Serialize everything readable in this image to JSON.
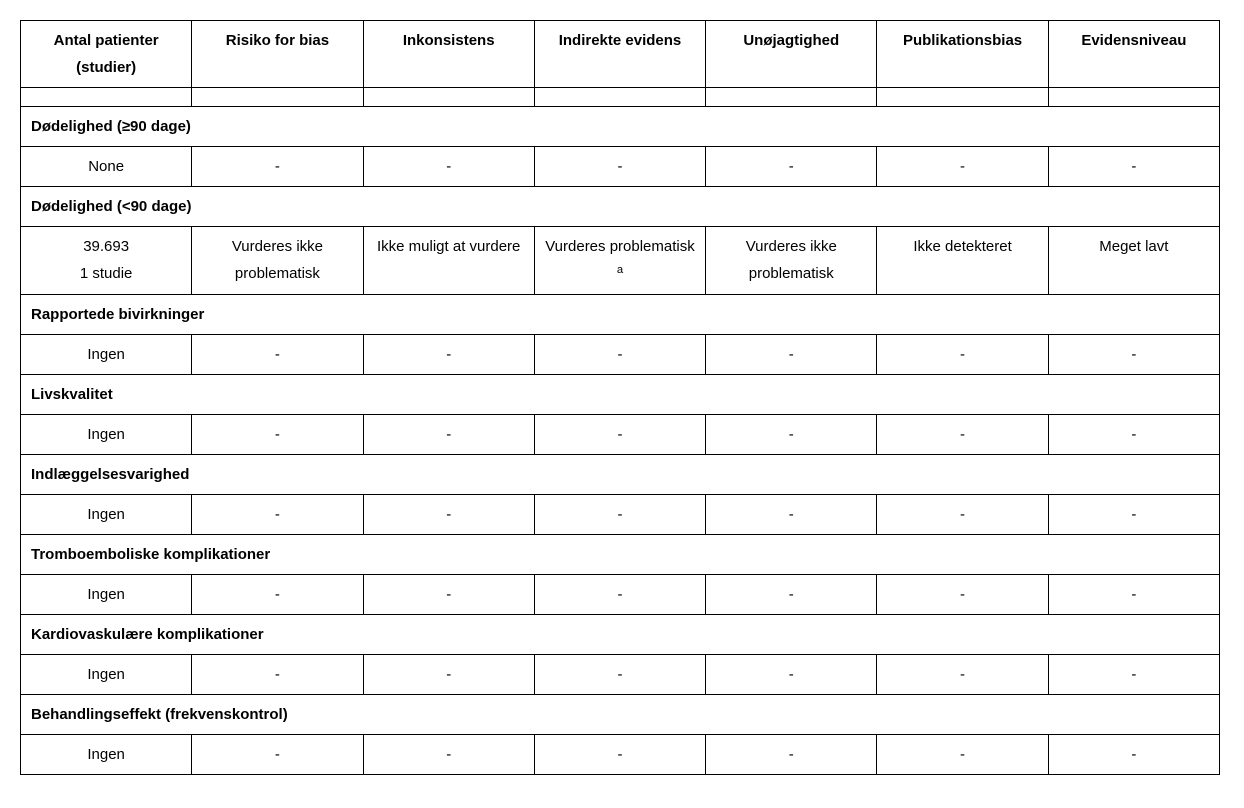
{
  "table": {
    "columns": [
      "Antal patienter (studier)",
      "Risiko for bias",
      "Inkonsistens",
      "Indirekte evidens",
      "Unøjagtighed",
      "Publikationsbias",
      "Evidensniveau"
    ],
    "sections": [
      {
        "title": "Dødelighed (≥90 dage)",
        "row": [
          "None",
          "-",
          "-",
          "-",
          "-",
          "-",
          "-"
        ]
      },
      {
        "title": "Dødelighed (<90 dage)",
        "row": [
          "39.693\n1 studie",
          "Vurderes ikke problematisk",
          "Ikke muligt at vurdere",
          "Vurderes problematisk <sup>a</sup>",
          "Vurderes ikke problematisk",
          "Ikke detekteret",
          "Meget lavt"
        ]
      },
      {
        "title": "Rapportede bivirkninger",
        "row": [
          "Ingen",
          "-",
          "-",
          "-",
          "-",
          "-",
          "-"
        ]
      },
      {
        "title": "Livskvalitet",
        "row": [
          "Ingen",
          "-",
          "-",
          "-",
          "-",
          "-",
          "-"
        ]
      },
      {
        "title": "Indlæggelsesvarighed",
        "row": [
          "Ingen",
          "-",
          "-",
          "-",
          "-",
          "-",
          "-"
        ]
      },
      {
        "title": "Tromboemboliske komplikationer",
        "row": [
          "Ingen",
          "-",
          "-",
          "-",
          "-",
          "-",
          "-"
        ]
      },
      {
        "title": "Kardiovaskulære komplikationer",
        "row": [
          "Ingen",
          "-",
          "-",
          "-",
          "-",
          "-",
          "-"
        ]
      },
      {
        "title": "Behandlingseffekt (frekvenskontrol)",
        "row": [
          "Ingen",
          "-",
          "-",
          "-",
          "-",
          "-",
          "-"
        ]
      }
    ]
  },
  "style": {
    "background_color": "#ffffff",
    "border_color": "#000000",
    "text_color": "#000000",
    "font_family": "Arial",
    "header_font_weight": "bold",
    "cell_font_size": 15
  }
}
